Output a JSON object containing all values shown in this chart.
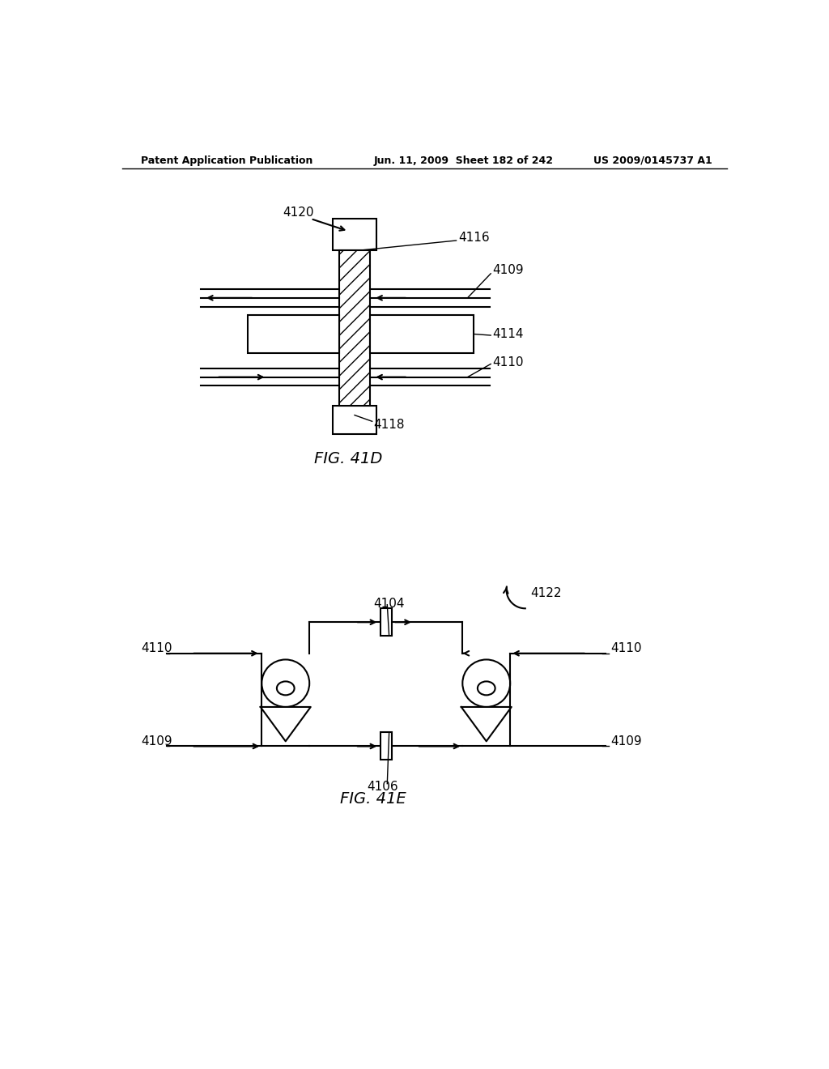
{
  "background_color": "#ffffff",
  "header_left": "Patent Application Publication",
  "header_mid": "Jun. 11, 2009  Sheet 182 of 242",
  "header_right": "US 2009/0145737 A1",
  "fig41d_label": "FIG. 41D",
  "fig41e_label": "FIG. 41E"
}
